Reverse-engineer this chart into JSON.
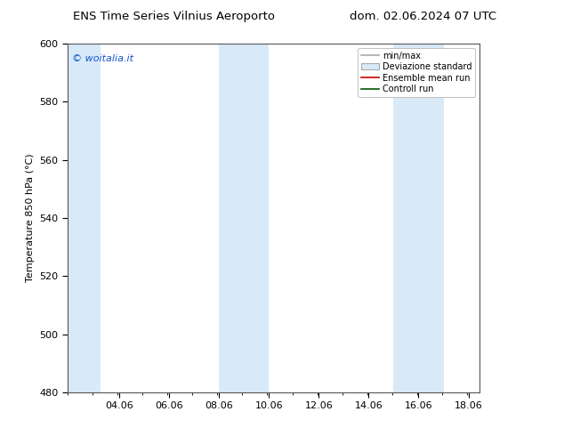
{
  "title": "ENS Time Series Vilnius Aeroporto",
  "title2": "dom. 02.06.2024 07 UTC",
  "ylabel": "Temperature 850 hPa (°C)",
  "ylim": [
    480,
    600
  ],
  "yticks": [
    480,
    500,
    520,
    540,
    560,
    580,
    600
  ],
  "xlim": [
    2.0,
    18.5
  ],
  "xtick_labels": [
    "04.06",
    "06.06",
    "08.06",
    "10.06",
    "12.06",
    "14.06",
    "16.06",
    "18.06"
  ],
  "xtick_positions": [
    4.06,
    6.06,
    8.06,
    10.06,
    12.06,
    14.06,
    16.06,
    18.06
  ],
  "bg_color": "#ffffff",
  "plot_bg_color": "#ffffff",
  "shaded_bands": [
    {
      "xmin": 2.0,
      "xmax": 3.3,
      "color": "#d8eaf8"
    },
    {
      "xmin": 8.06,
      "xmax": 10.06,
      "color": "#d8eaf8"
    },
    {
      "xmin": 15.06,
      "xmax": 17.06,
      "color": "#d8eaf8"
    }
  ],
  "legend_labels": [
    "min/max",
    "Deviazione standard",
    "Ensemble mean run",
    "Controll run"
  ],
  "legend_colors": [
    "#aaaaaa",
    "#cccccc",
    "#ff0000",
    "#006600"
  ],
  "watermark_text": "© woitalia.it",
  "watermark_color": "#1155cc",
  "font_size": 8,
  "title_font_size": 9.5
}
